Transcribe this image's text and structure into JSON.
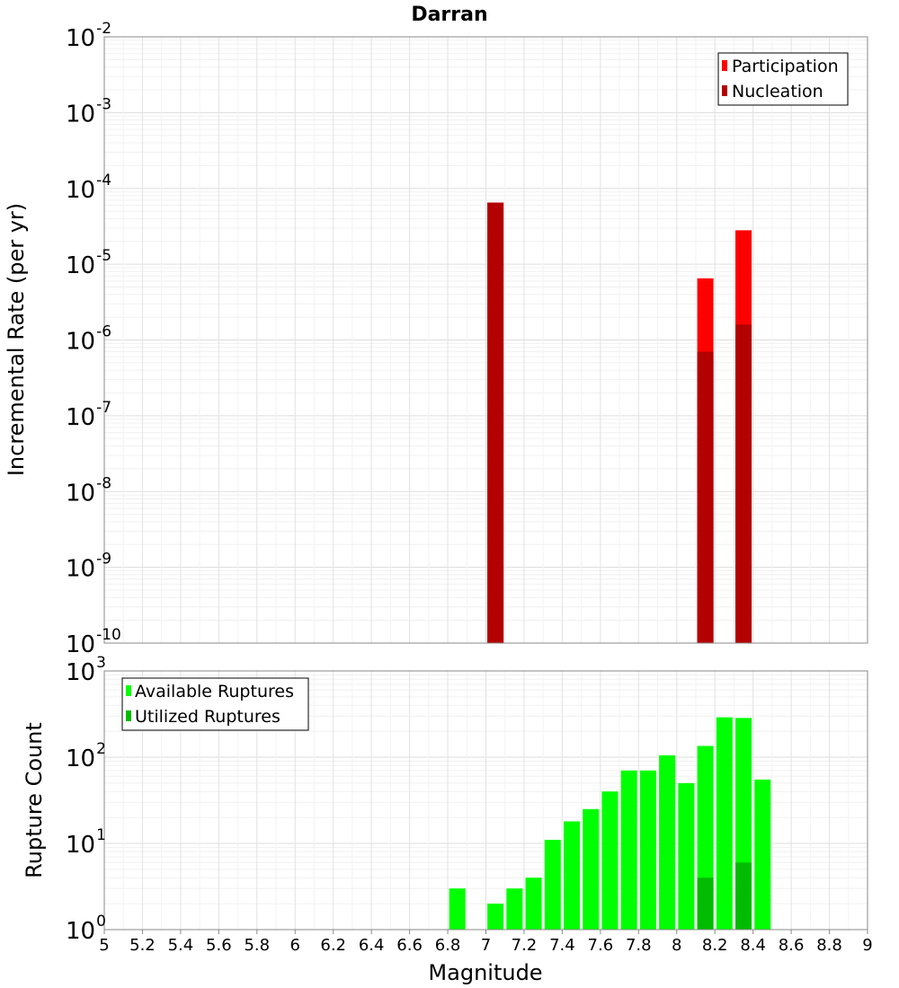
{
  "chart_data": [
    {
      "type": "bar",
      "title": "Darran",
      "xlabel": "",
      "ylabel": "Incremental Rate (per yr)",
      "yscale": "log",
      "ylim_exponents": [
        -10,
        -2
      ],
      "xlim": [
        5,
        9
      ],
      "grid": true,
      "legend_position": "top-right",
      "series": [
        {
          "name": "Participation",
          "color": "#ff0000",
          "points": [
            {
              "x": 7.05,
              "y": 6.5e-05
            },
            {
              "x": 8.15,
              "y": 6.5e-06
            },
            {
              "x": 8.35,
              "y": 2.8e-05
            }
          ]
        },
        {
          "name": "Nucleation",
          "color": "#b30000",
          "points": [
            {
              "x": 7.05,
              "y": 6.5e-05
            },
            {
              "x": 8.15,
              "y": 7e-07
            },
            {
              "x": 8.35,
              "y": 1.6e-06
            }
          ]
        }
      ]
    },
    {
      "type": "bar",
      "title": "",
      "xlabel": "Magnitude",
      "ylabel": "Rupture Count",
      "yscale": "log",
      "ylim_exponents": [
        0,
        3
      ],
      "xlim": [
        5,
        9
      ],
      "grid": true,
      "legend_position": "top-left",
      "series": [
        {
          "name": "Available Ruptures",
          "color": "#00ff00",
          "points": [
            {
              "x": 6.85,
              "y": 3
            },
            {
              "x": 7.05,
              "y": 2
            },
            {
              "x": 7.15,
              "y": 3
            },
            {
              "x": 7.25,
              "y": 4
            },
            {
              "x": 7.35,
              "y": 11
            },
            {
              "x": 7.45,
              "y": 18
            },
            {
              "x": 7.55,
              "y": 25
            },
            {
              "x": 7.65,
              "y": 40
            },
            {
              "x": 7.75,
              "y": 70
            },
            {
              "x": 7.85,
              "y": 70
            },
            {
              "x": 7.95,
              "y": 105
            },
            {
              "x": 8.05,
              "y": 50
            },
            {
              "x": 8.15,
              "y": 135
            },
            {
              "x": 8.25,
              "y": 290
            },
            {
              "x": 8.35,
              "y": 285
            },
            {
              "x": 8.45,
              "y": 55
            }
          ]
        },
        {
          "name": "Utilized Ruptures",
          "color": "#00bb00",
          "points": [
            {
              "x": 7.05,
              "y": 1
            },
            {
              "x": 8.15,
              "y": 4
            },
            {
              "x": 8.35,
              "y": 6
            }
          ]
        }
      ]
    }
  ],
  "x_ticks": [
    "5",
    "5.2",
    "5.4",
    "5.6",
    "5.8",
    "6",
    "6.2",
    "6.4",
    "6.6",
    "6.8",
    "7",
    "7.2",
    "7.4",
    "7.6",
    "7.8",
    "8",
    "8.2",
    "8.4",
    "8.6",
    "8.8",
    "9"
  ]
}
